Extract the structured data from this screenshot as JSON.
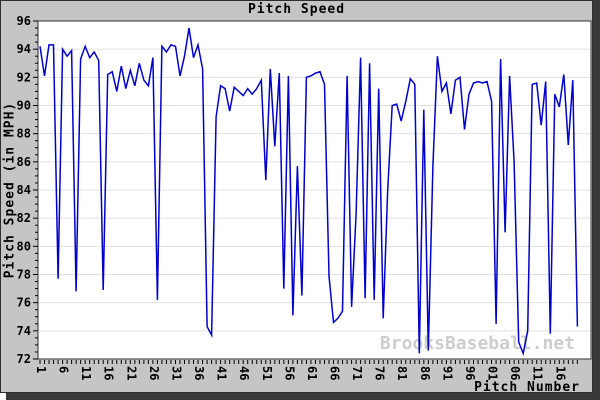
{
  "chart_data": {
    "type": "line",
    "title": "Pitch Speed",
    "xlabel": "Pitch Number",
    "ylabel": "Pitch Speed (in MPH)",
    "watermark": "BrooksBaseball.net",
    "legend": "none",
    "grid": "horizontal",
    "ylim": [
      72,
      96
    ],
    "y_major_step": 2,
    "y_minor_step": 0.5,
    "y_tick_labels": [
      "72",
      "74",
      "76",
      "78",
      "80",
      "82",
      "84",
      "86",
      "88",
      "90",
      "92",
      "94",
      "96"
    ],
    "x_start": 1,
    "x_label_every": 5,
    "x_tick_labels": [
      "1",
      "6",
      "11",
      "16",
      "21",
      "26",
      "31",
      "36",
      "41",
      "46",
      "51",
      "56",
      "61",
      "66",
      "71",
      "76",
      "81",
      "86",
      "91",
      "96",
      "01",
      "06",
      "11",
      "16"
    ],
    "line_color": "#0000cd",
    "background_color": "#c5c5c5",
    "plot_background": "#ffffff",
    "grid_color": "#e0e0e0",
    "values": [
      94.2,
      92.1,
      94.3,
      94.3,
      77.7,
      94.0,
      93.5,
      93.9,
      76.8,
      93.3,
      94.2,
      93.4,
      93.8,
      93.2,
      76.9,
      92.2,
      92.4,
      91.0,
      92.8,
      91.2,
      92.5,
      91.4,
      93.0,
      91.8,
      91.4,
      93.4,
      76.2,
      94.2,
      93.8,
      94.3,
      94.2,
      92.1,
      93.5,
      95.5,
      93.4,
      94.3,
      92.6,
      74.3,
      73.7,
      89.2,
      91.4,
      91.2,
      89.6,
      91.3,
      91.0,
      90.7,
      91.2,
      90.8,
      91.2,
      91.8,
      84.7,
      92.6,
      87.1,
      92.3,
      77.0,
      92.1,
      75.1,
      85.7,
      76.5,
      92.0,
      92.1,
      92.3,
      92.4,
      91.5,
      77.9,
      74.6,
      74.9,
      75.4,
      92.1,
      75.7,
      82.3,
      93.4,
      76.3,
      93.0,
      76.2,
      91.2,
      74.9,
      84.0,
      90.0,
      90.1,
      88.9,
      90.3,
      91.9,
      91.5,
      72.4,
      89.7,
      72.6,
      85.7,
      93.5,
      91.0,
      91.6,
      89.4,
      91.8,
      92.0,
      88.3,
      90.8,
      91.6,
      91.7,
      91.6,
      91.7,
      90.3,
      74.5,
      93.3,
      81.0,
      92.1,
      86.0,
      73.2,
      72.4,
      74.0,
      91.5,
      91.6,
      88.6,
      91.7,
      73.8,
      90.8,
      89.9,
      92.2,
      87.2,
      91.8,
      74.3
    ]
  }
}
